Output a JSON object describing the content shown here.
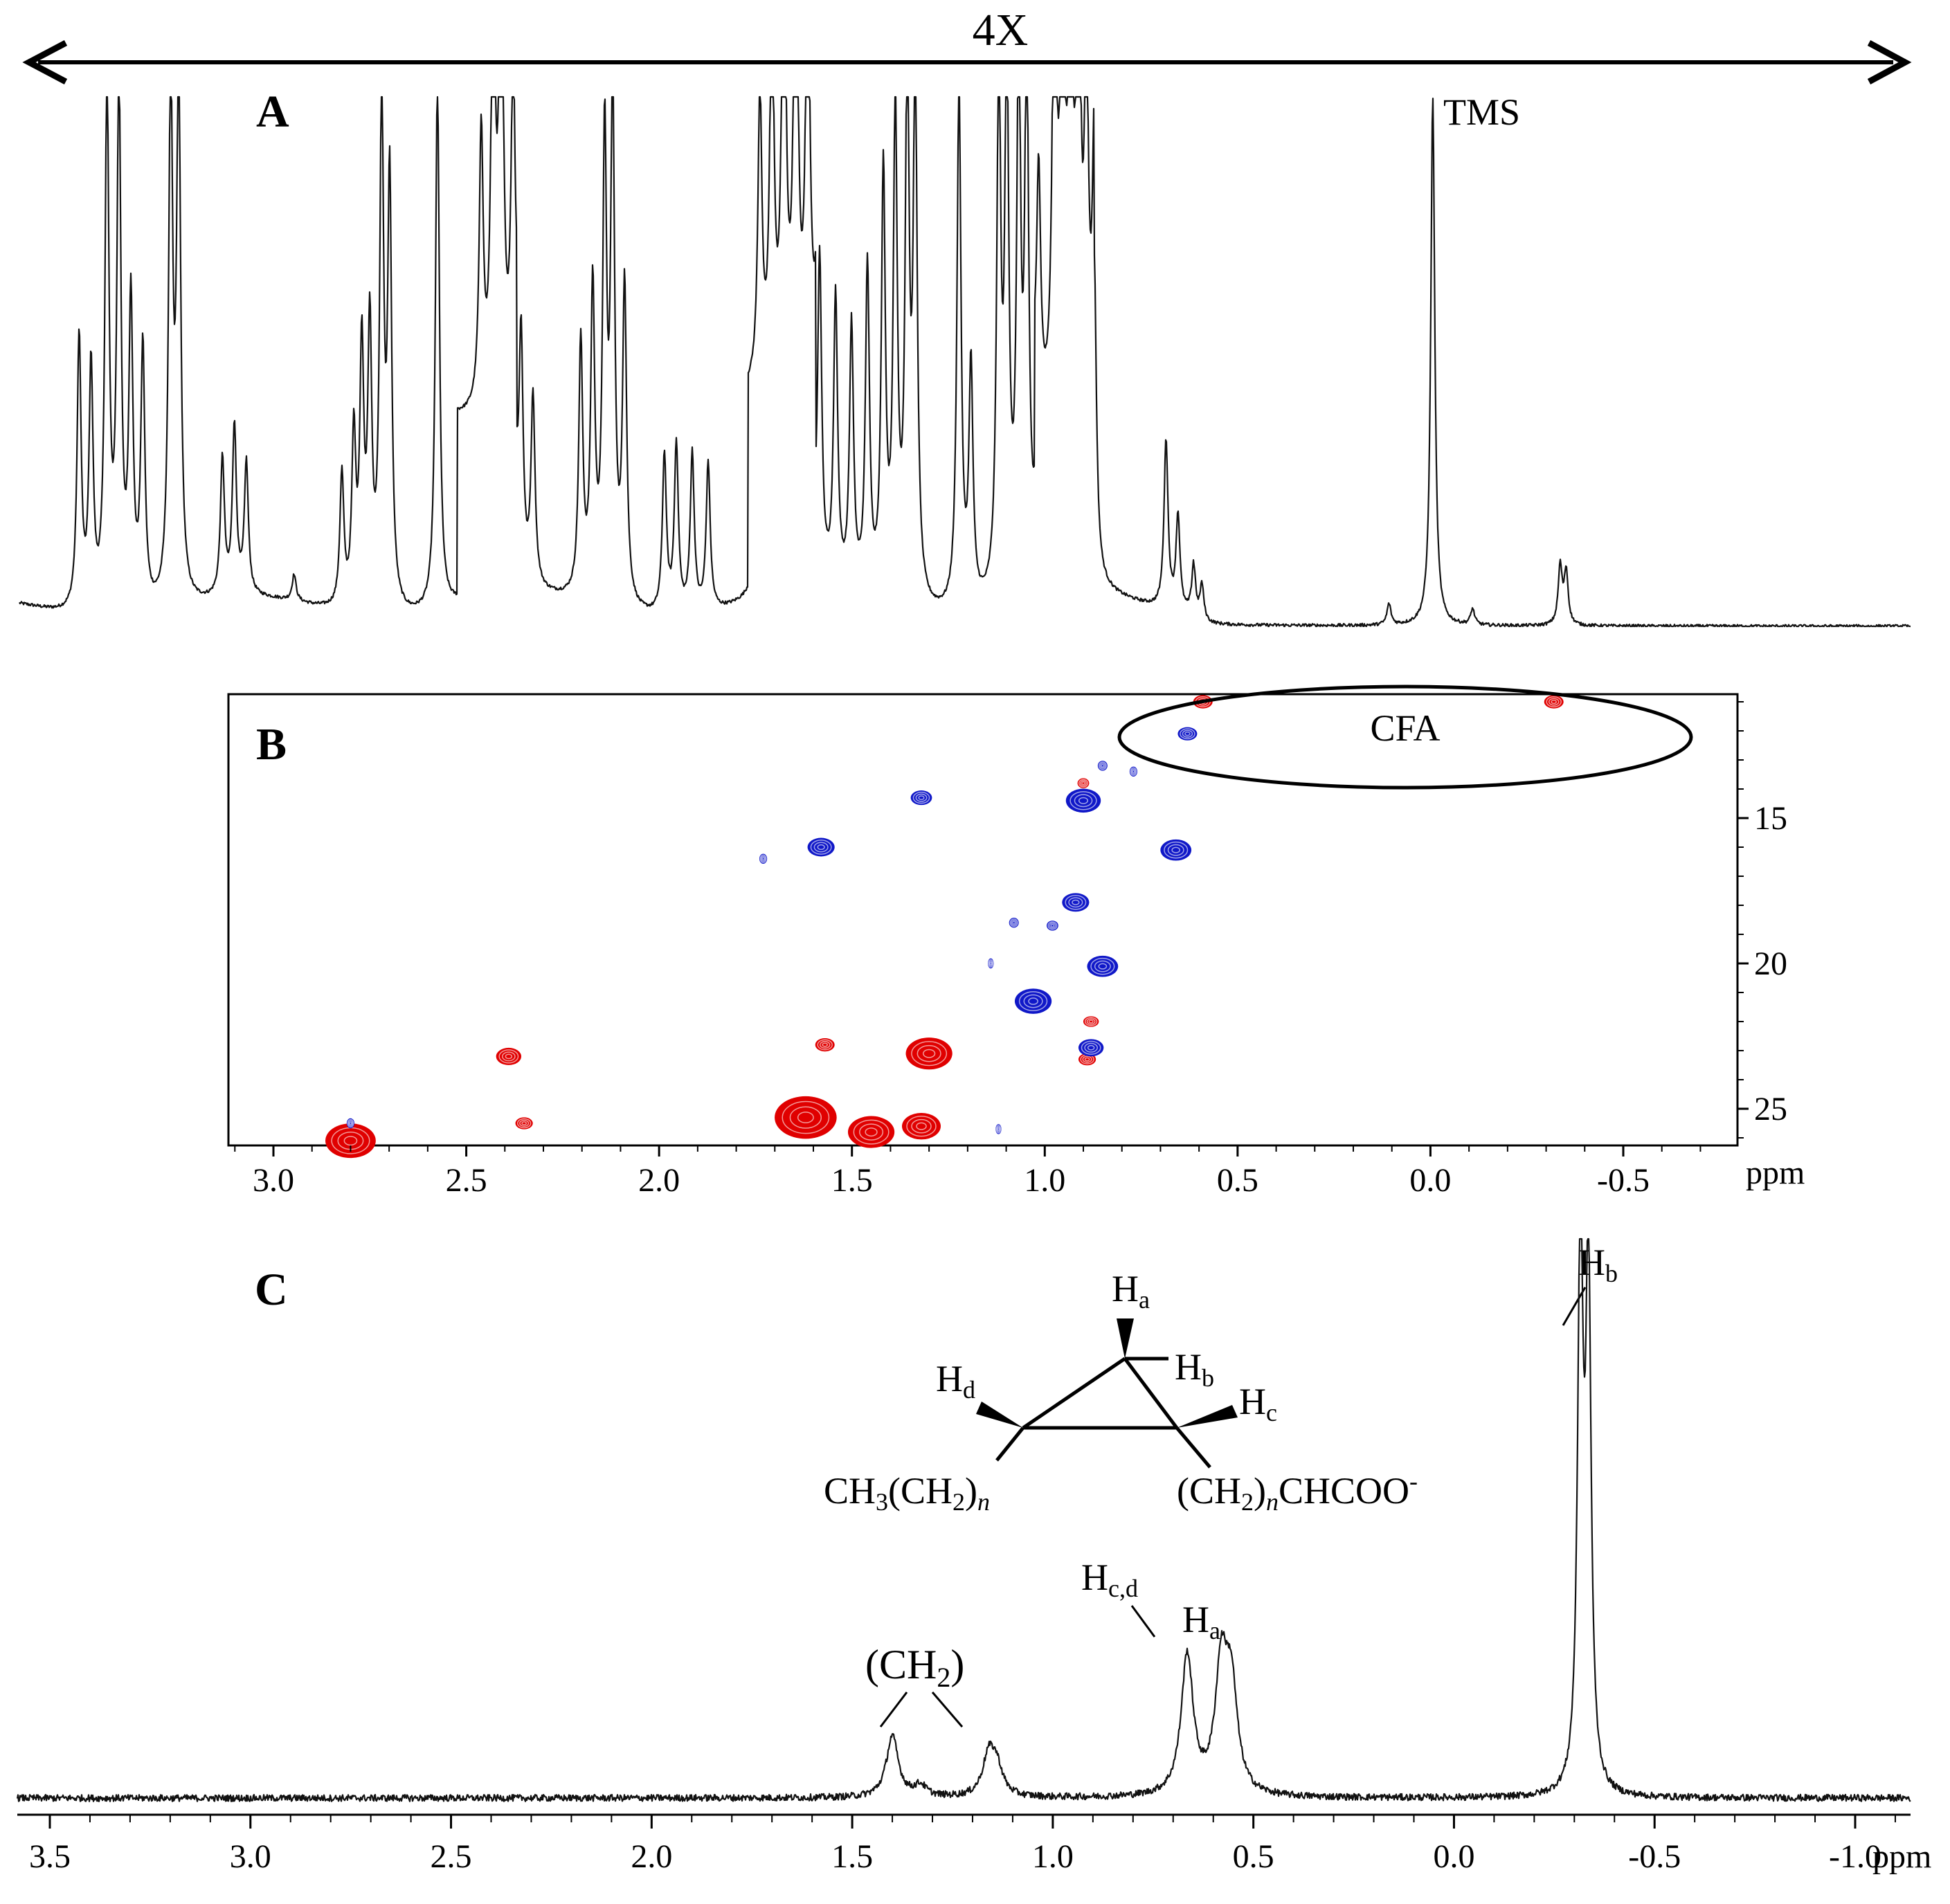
{
  "chart_data": [
    {
      "panel": "A",
      "type": "line",
      "description_label": "A",
      "scale_label": "4X",
      "annotations": [
        {
          "text": "TMS",
          "x": 0.0
        }
      ],
      "x_range_ppm": [
        3.55,
        -1.2
      ],
      "peaks": [
        {
          "x": 3.4,
          "h": 0.52
        },
        {
          "x": 3.37,
          "h": 0.46
        },
        {
          "x": 3.33,
          "h": 1.0
        },
        {
          "x": 3.3,
          "h": 1.0
        },
        {
          "x": 3.27,
          "h": 0.58
        },
        {
          "x": 3.24,
          "h": 0.49
        },
        {
          "x": 3.17,
          "h": 1.0
        },
        {
          "x": 3.15,
          "h": 1.0
        },
        {
          "x": 3.04,
          "h": 0.26
        },
        {
          "x": 3.01,
          "h": 0.32
        },
        {
          "x": 2.98,
          "h": 0.25
        },
        {
          "x": 2.86,
          "h": 0.05
        },
        {
          "x": 2.74,
          "h": 0.25
        },
        {
          "x": 2.71,
          "h": 0.32
        },
        {
          "x": 2.69,
          "h": 0.48
        },
        {
          "x": 2.67,
          "h": 0.52
        },
        {
          "x": 2.64,
          "h": 0.95
        },
        {
          "x": 2.62,
          "h": 0.8
        },
        {
          "x": 2.5,
          "h": 1.0
        },
        {
          "x": 2.39,
          "h": 0.52
        },
        {
          "x": 2.36,
          "h": 0.88
        },
        {
          "x": 2.34,
          "h": 1.0
        },
        {
          "x": 2.31,
          "h": 0.62
        },
        {
          "x": 2.29,
          "h": 0.45
        },
        {
          "x": 2.26,
          "h": 0.36
        },
        {
          "x": 2.14,
          "h": 0.48
        },
        {
          "x": 2.11,
          "h": 0.58
        },
        {
          "x": 2.08,
          "h": 0.86
        },
        {
          "x": 2.06,
          "h": 0.95
        },
        {
          "x": 2.03,
          "h": 0.6
        },
        {
          "x": 1.93,
          "h": 0.3
        },
        {
          "x": 1.9,
          "h": 0.32
        },
        {
          "x": 1.86,
          "h": 0.3
        },
        {
          "x": 1.82,
          "h": 0.28
        },
        {
          "x": 1.69,
          "h": 0.55
        },
        {
          "x": 1.66,
          "h": 0.75
        },
        {
          "x": 1.63,
          "h": 0.95
        },
        {
          "x": 1.6,
          "h": 1.0
        },
        {
          "x": 1.57,
          "h": 0.85
        },
        {
          "x": 1.54,
          "h": 0.6
        },
        {
          "x": 1.5,
          "h": 0.55
        },
        {
          "x": 1.46,
          "h": 0.5
        },
        {
          "x": 1.42,
          "h": 0.62
        },
        {
          "x": 1.38,
          "h": 0.8
        },
        {
          "x": 1.35,
          "h": 0.92
        },
        {
          "x": 1.32,
          "h": 1.0
        },
        {
          "x": 1.3,
          "h": 1.0
        },
        {
          "x": 1.19,
          "h": 1.0
        },
        {
          "x": 1.16,
          "h": 0.45
        },
        {
          "x": 1.09,
          "h": 1.0
        },
        {
          "x": 1.07,
          "h": 1.0
        },
        {
          "x": 1.04,
          "h": 1.0
        },
        {
          "x": 1.02,
          "h": 1.0
        },
        {
          "x": 0.99,
          "h": 0.45
        },
        {
          "x": 0.95,
          "h": 1.0
        },
        {
          "x": 0.93,
          "h": 1.0
        },
        {
          "x": 0.91,
          "h": 1.0
        },
        {
          "x": 0.89,
          "h": 1.0
        },
        {
          "x": 0.87,
          "h": 0.68
        },
        {
          "x": 0.85,
          "h": 0.55
        },
        {
          "x": 0.67,
          "h": 0.32
        },
        {
          "x": 0.64,
          "h": 0.18
        },
        {
          "x": 0.6,
          "h": 0.1
        },
        {
          "x": 0.58,
          "h": 0.07
        },
        {
          "x": 0.0,
          "h": 1.0
        },
        {
          "x": 0.11,
          "h": 0.04
        },
        {
          "x": -0.1,
          "h": 0.03
        },
        {
          "x": -0.32,
          "h": 0.11
        },
        {
          "x": -0.335,
          "h": 0.1
        }
      ]
    },
    {
      "panel": "B",
      "type": "scatter",
      "description_label": "B",
      "x_ticks": [
        "3.0",
        "2.5",
        "2.0",
        "1.5",
        "1.0",
        "0.5",
        "0.0",
        "-0.5"
      ],
      "x_unit": "ppm",
      "y_ticks": [
        "15",
        "20",
        "25"
      ],
      "ellipse_label": "CFA",
      "xlim": [
        3.1,
        -0.8
      ],
      "ylim": [
        10.6,
        26.4
      ],
      "series": [
        {
          "name": "red",
          "color": "#e00000",
          "points": [
            {
              "x": 0.59,
              "y": 11.0,
              "s": 1.0
            },
            {
              "x": -0.32,
              "y": 11.0,
              "s": 1.0
            },
            {
              "x": 0.9,
              "y": 13.8,
              "s": 0.6
            },
            {
              "x": 2.39,
              "y": 23.2,
              "s": 1.3
            },
            {
              "x": 2.35,
              "y": 25.5,
              "s": 0.9
            },
            {
              "x": 2.8,
              "y": 26.1,
              "s": 2.6
            },
            {
              "x": 1.57,
              "y": 22.8,
              "s": 1.0
            },
            {
              "x": 1.3,
              "y": 23.1,
              "s": 2.4
            },
            {
              "x": 1.62,
              "y": 25.3,
              "s": 3.2
            },
            {
              "x": 1.45,
              "y": 25.8,
              "s": 2.4
            },
            {
              "x": 1.32,
              "y": 25.6,
              "s": 2.0
            },
            {
              "x": 0.88,
              "y": 22.0,
              "s": 0.8
            },
            {
              "x": 0.89,
              "y": 23.3,
              "s": 0.9
            }
          ]
        },
        {
          "name": "blue",
          "color": "#1018c8",
          "points": [
            {
              "x": 0.63,
              "y": 12.1,
              "s": 1.0
            },
            {
              "x": 0.85,
              "y": 13.2,
              "s": 0.5
            },
            {
              "x": 0.77,
              "y": 13.4,
              "s": 0.4
            },
            {
              "x": 0.9,
              "y": 14.4,
              "s": 1.8
            },
            {
              "x": 1.32,
              "y": 14.3,
              "s": 1.1
            },
            {
              "x": 1.58,
              "y": 16.0,
              "s": 1.4
            },
            {
              "x": 1.73,
              "y": 16.4,
              "s": 0.4
            },
            {
              "x": 0.66,
              "y": 16.1,
              "s": 1.6
            },
            {
              "x": 0.92,
              "y": 17.9,
              "s": 1.4
            },
            {
              "x": 0.98,
              "y": 18.7,
              "s": 0.6
            },
            {
              "x": 1.08,
              "y": 18.6,
              "s": 0.5
            },
            {
              "x": 0.85,
              "y": 20.1,
              "s": 1.6
            },
            {
              "x": 1.14,
              "y": 20.0,
              "s": 0.3
            },
            {
              "x": 1.03,
              "y": 21.3,
              "s": 1.9
            },
            {
              "x": 0.88,
              "y": 22.9,
              "s": 1.3
            },
            {
              "x": 2.8,
              "y": 25.5,
              "s": 0.4
            },
            {
              "x": 1.12,
              "y": 25.7,
              "s": 0.3
            }
          ]
        }
      ]
    },
    {
      "panel": "C",
      "type": "line",
      "description_label": "C",
      "x_ticks": [
        "3.5",
        "3.0",
        "2.5",
        "2.0",
        "1.5",
        "1.0",
        "0.5",
        "0.0",
        "-0.5",
        "-1.0"
      ],
      "x_unit": "ppm",
      "xlim": [
        3.58,
        -1.21
      ],
      "peaks": [
        {
          "x": 1.4,
          "h": 0.11
        },
        {
          "x": 1.33,
          "h": 0.02
        },
        {
          "x": 1.16,
          "h": 0.07
        },
        {
          "x": 1.14,
          "h": 0.05
        },
        {
          "x": 0.665,
          "h": 0.25
        },
        {
          "x": 0.58,
          "h": 0.22
        },
        {
          "x": 0.555,
          "h": 0.18
        },
        {
          "x": -0.315,
          "h": 1.0
        },
        {
          "x": -0.335,
          "h": 0.92
        }
      ],
      "labels": {
        "ch2": "(CH",
        "ch2_sub": "2",
        "ch2_close": ")",
        "hcd": "H",
        "hcd_sub": "c,d",
        "ha": "H",
        "ha_sub": "a",
        "hb": "H",
        "hb_sub": "b"
      },
      "structure": {
        "ha": "H",
        "ha_sub": "a",
        "hb": "H",
        "hb_sub": "b",
        "hc": "H",
        "hc_sub": "c",
        "hd": "H",
        "hd_sub": "d",
        "left_group_1": "CH",
        "left_group_sub1": "3",
        "left_group_2": "(CH",
        "left_group_sub2": "2",
        "left_group_3": ")",
        "left_group_n": "n",
        "right_group_1": "(CH",
        "right_group_sub1": "2",
        "right_group_2": ")",
        "right_group_n": "n",
        "right_group_3": "CHCOO",
        "right_group_sup": "-"
      }
    }
  ]
}
